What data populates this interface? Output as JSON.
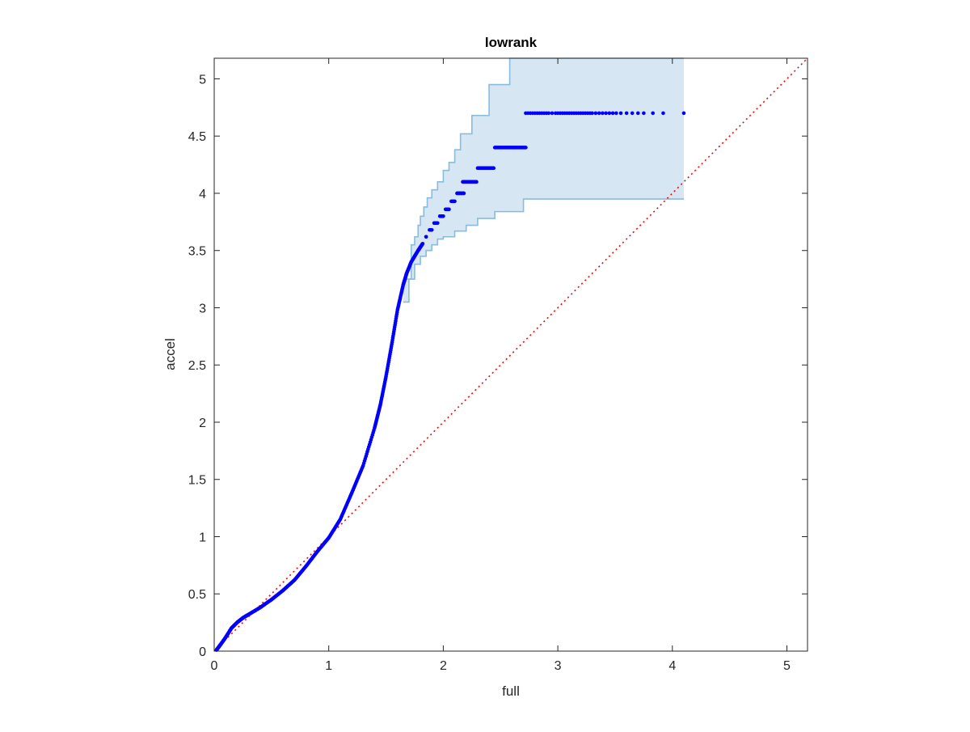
{
  "chart_data": {
    "type": "scatter",
    "title": "lowrank",
    "xlabel": "full",
    "ylabel": "accel",
    "xlim": [
      0,
      5.18
    ],
    "ylim": [
      0,
      5.18
    ],
    "x_ticks": [
      0,
      1,
      2,
      3,
      4,
      5
    ],
    "x_tick_labels": [
      "0",
      "1",
      "2",
      "3",
      "4",
      "5"
    ],
    "y_ticks": [
      0,
      0.5,
      1,
      1.5,
      2,
      2.5,
      3,
      3.5,
      4,
      4.5,
      5
    ],
    "y_tick_labels": [
      "0",
      "0.5",
      "1",
      "1.5",
      "2",
      "2.5",
      "3",
      "3.5",
      "4",
      "4.5",
      "5"
    ],
    "grid": false,
    "box": true,
    "colors": {
      "points": "#0000ff",
      "reference_line": "#ff0000",
      "band_fill": "#d6e6f3",
      "band_edge": "#89bbdc",
      "axes": "#262626"
    },
    "quantile_curve": {
      "x": [
        0.02,
        0.05,
        0.1,
        0.15,
        0.2,
        0.25,
        0.3,
        0.4,
        0.5,
        0.6,
        0.7,
        0.8,
        0.9,
        1.0,
        1.1,
        1.2,
        1.3,
        1.4,
        1.45,
        1.5,
        1.55,
        1.6,
        1.65,
        1.68,
        1.72,
        1.78,
        1.82
      ],
      "y": [
        0.01,
        0.05,
        0.12,
        0.2,
        0.25,
        0.29,
        0.32,
        0.38,
        0.45,
        0.53,
        0.62,
        0.74,
        0.87,
        0.99,
        1.15,
        1.38,
        1.62,
        1.95,
        2.15,
        2.4,
        2.68,
        2.98,
        3.2,
        3.3,
        3.4,
        3.5,
        3.56
      ]
    },
    "step_points": [
      {
        "x_from": 1.85,
        "x_to": 1.85,
        "y": 3.62
      },
      {
        "x_from": 1.88,
        "x_to": 1.9,
        "y": 3.68
      },
      {
        "x_from": 1.92,
        "x_to": 1.95,
        "y": 3.74
      },
      {
        "x_from": 1.97,
        "x_to": 2.0,
        "y": 3.8
      },
      {
        "x_from": 2.02,
        "x_to": 2.05,
        "y": 3.86
      },
      {
        "x_from": 2.07,
        "x_to": 2.1,
        "y": 3.93
      },
      {
        "x_from": 2.12,
        "x_to": 2.18,
        "y": 4.0
      },
      {
        "x_from": 2.17,
        "x_to": 2.29,
        "y": 4.1
      },
      {
        "x_from": 2.3,
        "x_to": 2.44,
        "y": 4.22
      },
      {
        "x_from": 2.45,
        "x_to": 2.72,
        "y": 4.4
      }
    ],
    "sparse_points": {
      "y": 4.7,
      "x": [
        2.72,
        2.74,
        2.76,
        2.78,
        2.8,
        2.82,
        2.84,
        2.86,
        2.88,
        2.9,
        2.92,
        2.95,
        2.98,
        3.0,
        3.02,
        3.04,
        3.06,
        3.08,
        3.1,
        3.12,
        3.14,
        3.16,
        3.18,
        3.2,
        3.22,
        3.24,
        3.26,
        3.28,
        3.3,
        3.33,
        3.36,
        3.39,
        3.42,
        3.45,
        3.48,
        3.51,
        3.55,
        3.6,
        3.65,
        3.7,
        3.75,
        3.83,
        3.92,
        4.1
      ]
    },
    "confidence_band": {
      "upper": {
        "x": [
          1.65,
          1.72,
          1.75,
          1.78,
          1.8,
          1.83,
          1.86,
          1.9,
          1.95,
          2.0,
          2.05,
          2.1,
          2.15,
          2.25,
          2.4,
          2.58,
          2.7,
          4.1
        ],
        "y": [
          3.25,
          3.55,
          3.62,
          3.72,
          3.8,
          3.88,
          3.96,
          4.03,
          4.1,
          4.2,
          4.27,
          4.38,
          4.52,
          4.68,
          4.95,
          5.18,
          5.18,
          5.18
        ]
      },
      "lower": {
        "x": [
          1.65,
          1.7,
          1.75,
          1.8,
          1.85,
          1.9,
          1.95,
          2.0,
          2.1,
          2.2,
          2.3,
          2.45,
          2.58,
          2.7,
          4.1
        ],
        "y": [
          3.05,
          3.25,
          3.38,
          3.45,
          3.5,
          3.55,
          3.6,
          3.62,
          3.67,
          3.72,
          3.78,
          3.84,
          3.84,
          3.95,
          3.95
        ]
      }
    },
    "reference_line": {
      "from": [
        0,
        0
      ],
      "to": [
        5.18,
        5.18
      ],
      "style": "dotted"
    }
  }
}
